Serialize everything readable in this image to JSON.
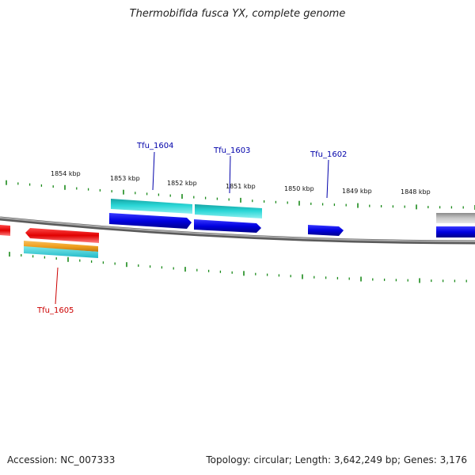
{
  "title": "Thermobifida fusca YX, complete genome",
  "footer": {
    "accession": "Accession: NC_007333",
    "summary": "Topology: circular; Length: 3,642,249 bp; Genes: 3,176"
  },
  "kbp_labels": [
    "1854 kbp",
    "1853 kbp",
    "1852 kbp",
    "1851 kbp",
    "1850 kbp",
    "1849 kbp",
    "1848 kbp"
  ],
  "gene_labels": {
    "tfu1604": "Tfu_1604",
    "tfu1603": "Tfu_1603",
    "tfu1602": "Tfu_1602",
    "tfu1605": "Tfu_1605"
  },
  "colors": {
    "forward_label": "#0000aa",
    "reverse_label": "#cc0000",
    "tick": "#1a8a1a",
    "backbone": "#8a8a8a",
    "gene_blue": "#0000e0",
    "gene_cyan": "#1fc9c9",
    "gene_red": "#e00000",
    "gene_orange": "#f0a020",
    "gene_grey": "#b0b0b0"
  }
}
